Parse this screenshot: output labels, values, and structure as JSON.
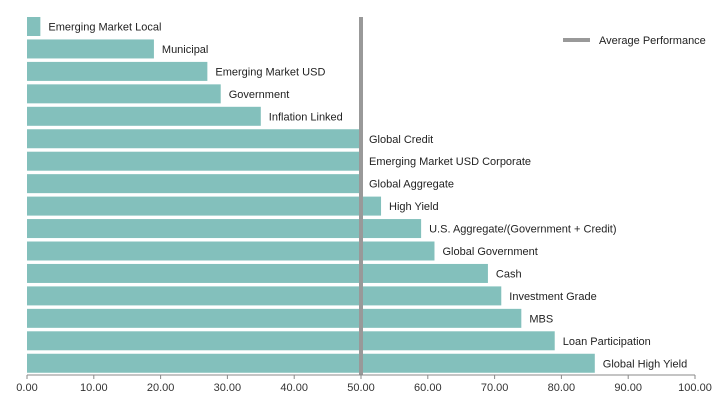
{
  "chart_data": {
    "type": "bar",
    "orientation": "horizontal",
    "categories": [
      "Emerging Market Local",
      "Municipal",
      "Emerging Market USD",
      "Government",
      "Inflation Linked",
      "Global Credit",
      "Emerging Market USD Corporate",
      "Global Aggregate",
      "High Yield",
      "U.S. Aggregate/(Government + Credit)",
      "Global Government",
      "Cash",
      "Investment Grade",
      "MBS",
      "Loan Participation",
      "Global High Yield"
    ],
    "values": [
      2,
      19,
      27,
      29,
      35,
      50,
      50,
      50,
      53,
      59,
      61,
      69,
      71,
      74,
      79,
      85
    ],
    "xlim": [
      0,
      100
    ],
    "xticks": [
      "0.00",
      "10.00",
      "20.00",
      "30.00",
      "40.00",
      "50.00",
      "60.00",
      "70.00",
      "80.00",
      "90.00",
      "100.00"
    ],
    "reference_line": {
      "label": "Average Performance",
      "value": 50
    },
    "legend_position": "top-right",
    "grid": false,
    "title": "",
    "xlabel": "",
    "ylabel": ""
  },
  "colors": {
    "bar": "#83c0bc",
    "reference_line": "#999999",
    "axis": "#888888"
  }
}
